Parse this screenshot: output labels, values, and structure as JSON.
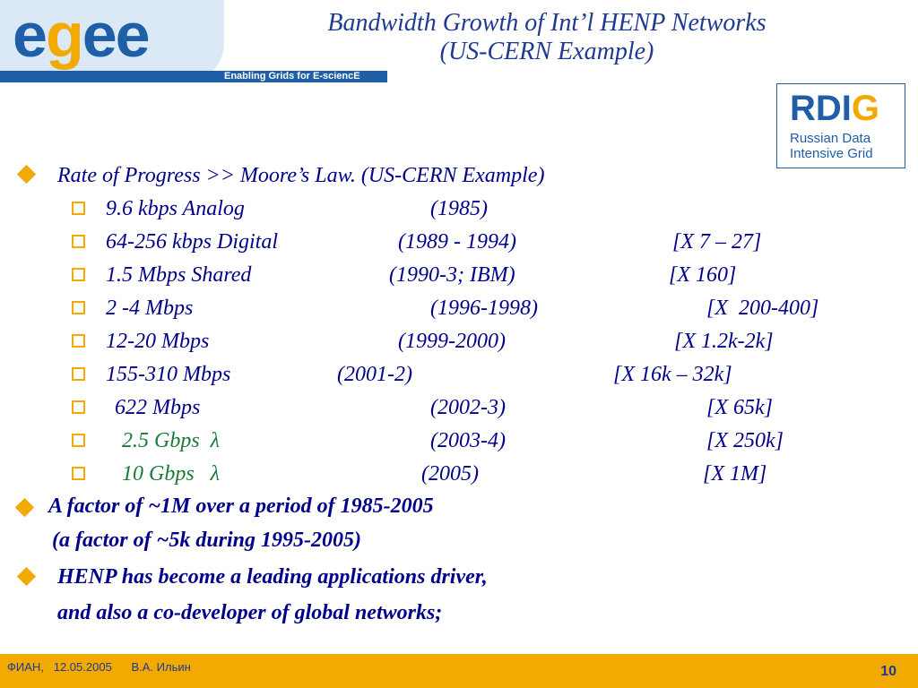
{
  "logo": {
    "word_pre": "e",
    "word_accent": "g",
    "word_post": "ee",
    "tagline": "Enabling Grids for E-sciencE"
  },
  "title": {
    "line1": "Bandwidth Growth of Int’l HENP Networks",
    "line2": "(US-CERN Example)"
  },
  "rdig": {
    "big_pre": "RDI",
    "big_accent": "G",
    "line1": "Russian Data",
    "line2": "Intensive Grid"
  },
  "bullets": {
    "b1": "Rate of Progress >> Moore’s Law. (US-CERN Example)",
    "rows": [
      {
        "speed": "9.6 kbps Analog",
        "years": "(1985)",
        "factor": ""
      },
      {
        "speed": "64-256 kbps Digital",
        "years": "(1989 - 1994)",
        "factor": "[X 7 – 27]"
      },
      {
        "speed": "1.5 Mbps Shared",
        "years": "(1990-3; IBM)",
        "factor": "[X 160]"
      },
      {
        "speed": "2 -4 Mbps",
        "years": "(1996-1998)",
        "factor": "[X  200-400]"
      },
      {
        "speed": "12-20 Mbps",
        "years": "(1999-2000)",
        "factor": "[X 1.2k-2k]"
      },
      {
        "speed": "155-310 Mbps",
        "years": "(2001-2)",
        "factor": "[X 16k – 32k]"
      },
      {
        "speed": "622 Mbps",
        "years": "(2002-3)",
        "factor": "[X 65k]"
      },
      {
        "speed": "2.5 Gbps  λ",
        "years": "(2003-4)",
        "factor": "[X 250k]"
      },
      {
        "speed": "10 Gbps   λ",
        "years": "(2005)",
        "factor": "[X 1M]"
      }
    ],
    "b2_line1": "A factor of ~1M over a period of 1985-2005",
    "b2_line2": "(a factor of ~5k during 1995-2005)",
    "b3_line1": "HENP has become a leading applications driver,",
    "b3_line2": "and also a co-developer of global networks;"
  },
  "footer": {
    "left": "ФИАН,   12.05.2005      В.А. Ильин",
    "page": "10"
  },
  "colors": {
    "accent": "#f2a900",
    "brand_blue": "#1f5fa8",
    "text_blue": "#00008b",
    "green": "#1a7a3a"
  }
}
